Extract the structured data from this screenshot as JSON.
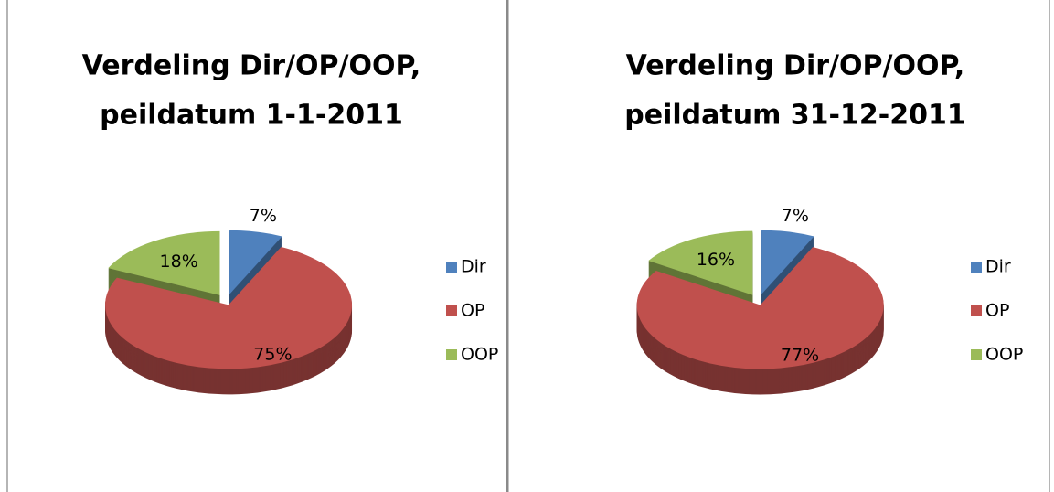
{
  "chart_data": [
    {
      "type": "pie",
      "title": [
        "Verdeling Dir/OP/OOP,",
        "peildatum 1-1-2011"
      ],
      "categories": [
        "Dir",
        "OP",
        "OOP"
      ],
      "values": [
        7,
        75,
        18
      ],
      "value_labels": [
        "7%",
        "75%",
        "18%"
      ],
      "colors": [
        "#4f81bd",
        "#c0504d",
        "#9bbb59"
      ],
      "legend": "right"
    },
    {
      "type": "pie",
      "title": [
        "Verdeling Dir/OP/OOP,",
        "peildatum 31-12-2011"
      ],
      "categories": [
        "Dir",
        "OP",
        "OOP"
      ],
      "values": [
        7,
        77,
        16
      ],
      "value_labels": [
        "7%",
        "77%",
        "16%"
      ],
      "colors": [
        "#4f81bd",
        "#c0504d",
        "#9bbb59"
      ],
      "legend": "right"
    }
  ]
}
